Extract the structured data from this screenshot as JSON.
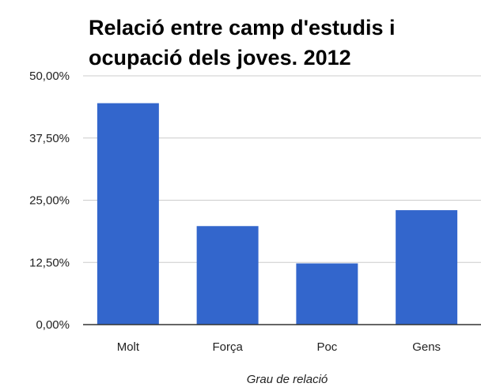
{
  "chart_data": {
    "type": "bar",
    "title_lines": [
      "Relació entre camp d'estudis i",
      "ocupació dels joves. 2012"
    ],
    "categories": [
      "Molt",
      "Força",
      "Poc",
      "Gens"
    ],
    "values": [
      44.5,
      19.8,
      12.3,
      23.0
    ],
    "xlabel": "Grau de relació",
    "ylabel": "",
    "ylim": [
      0,
      50
    ],
    "y_ticks": [
      0,
      12.5,
      25,
      37.5,
      50
    ],
    "y_tick_labels": [
      "0,00%",
      "12,50%",
      "25,00%",
      "37,50%",
      "50,00%"
    ],
    "grid": true,
    "legend": "none",
    "bar_color": "#3366cc",
    "grid_color": "#cccccc",
    "axis_color": "#333333"
  }
}
